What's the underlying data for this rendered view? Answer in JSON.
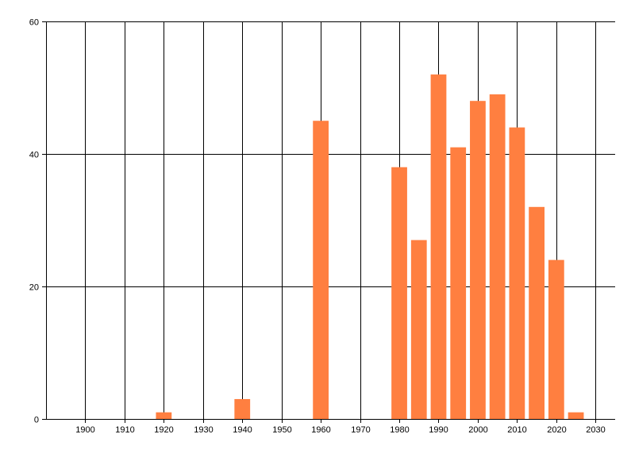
{
  "chart_data": {
    "type": "bar",
    "title": "",
    "xlabel": "",
    "ylabel": "",
    "x": [
      1920,
      1940,
      1960,
      1980,
      1985,
      1990,
      1995,
      2000,
      2005,
      2010,
      2015,
      2020,
      2025
    ],
    "values": [
      1,
      3,
      45,
      38,
      27,
      52,
      41,
      48,
      49,
      44,
      32,
      24,
      1
    ],
    "xlim": [
      1890,
      2035
    ],
    "ylim": [
      0,
      60
    ],
    "x_ticks": [
      "1900",
      "1910",
      "1920",
      "1930",
      "1940",
      "1950",
      "1960",
      "1970",
      "1980",
      "1990",
      "2000",
      "2010",
      "2020",
      "2030"
    ],
    "y_ticks": [
      "0",
      "20",
      "40",
      "60"
    ],
    "bar_width_years": 4,
    "grid": true,
    "bar_color": "#FF7F40",
    "grid_color": "#000000"
  }
}
